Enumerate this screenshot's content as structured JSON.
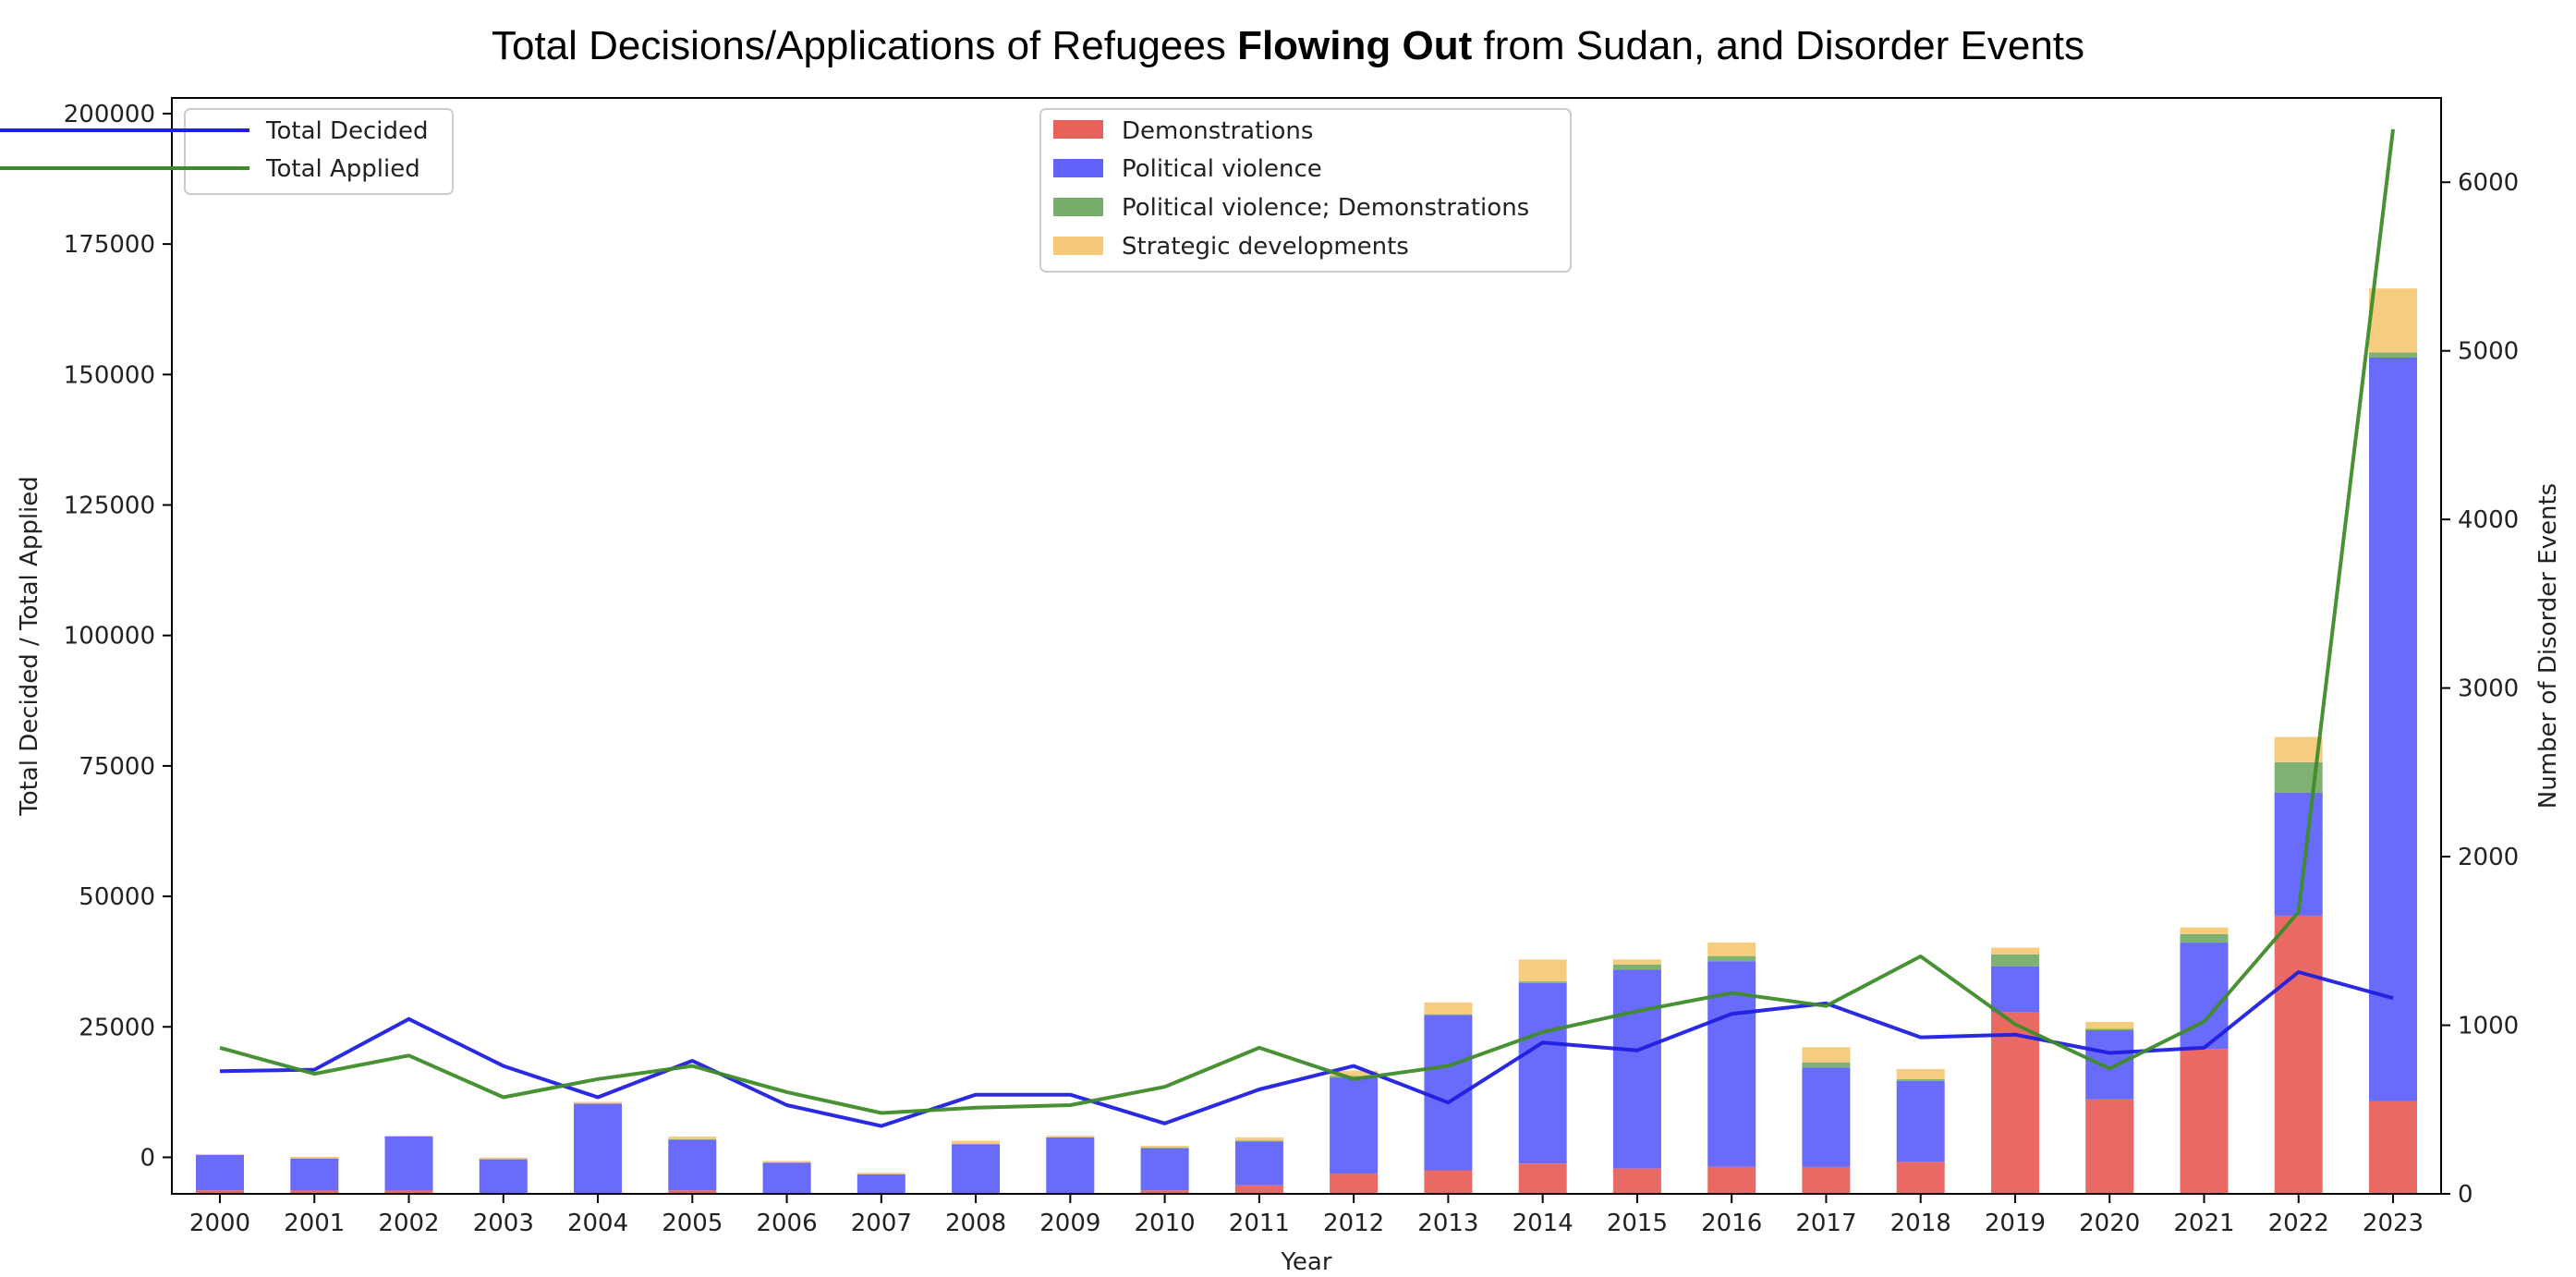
{
  "chart_data": {
    "type": "bar",
    "title_parts": [
      "Total Decisions/Applications of Refugees ",
      "Flowing Out",
      " from Sudan, and Disorder Events"
    ],
    "xlabel": "Year",
    "ylabel_left": "Total Decided / Total Applied",
    "ylabel_right": "Number of Disorder Events",
    "categories": [
      "2000",
      "2001",
      "2002",
      "2003",
      "2004",
      "2005",
      "2006",
      "2007",
      "2008",
      "2009",
      "2010",
      "2011",
      "2012",
      "2013",
      "2014",
      "2015",
      "2016",
      "2017",
      "2018",
      "2019",
      "2020",
      "2021",
      "2022",
      "2023"
    ],
    "ylim_left": [
      -7000,
      203000
    ],
    "ylim_right": [
      0,
      6500
    ],
    "yticks_left": [
      0,
      25000,
      50000,
      75000,
      100000,
      125000,
      150000,
      175000,
      200000
    ],
    "yticks_right": [
      0,
      1000,
      2000,
      3000,
      4000,
      5000,
      6000
    ],
    "bar_series": [
      {
        "name": "Demonstrations",
        "color": "#e8625c",
        "values": [
          20,
          20,
          20,
          5,
          5,
          20,
          5,
          5,
          5,
          5,
          20,
          50,
          120,
          140,
          180,
          150,
          160,
          160,
          190,
          1080,
          560,
          860,
          1650,
          550
        ]
      },
      {
        "name": "Political violence",
        "color": "#6163fb",
        "values": [
          210,
          190,
          320,
          200,
          530,
          300,
          180,
          110,
          290,
          330,
          250,
          260,
          570,
          920,
          1070,
          1180,
          1220,
          590,
          480,
          270,
          410,
          630,
          730,
          4410
        ]
      },
      {
        "name": "Political violence; Demonstrations",
        "color": "#77ae6c",
        "values": [
          0,
          0,
          0,
          0,
          0,
          5,
          0,
          0,
          0,
          0,
          5,
          5,
          10,
          5,
          10,
          30,
          30,
          30,
          10,
          70,
          10,
          50,
          180,
          30
        ]
      },
      {
        "name": "Strategic developments",
        "color": "#f5c977",
        "values": [
          5,
          10,
          5,
          10,
          10,
          15,
          10,
          10,
          20,
          10,
          10,
          20,
          30,
          70,
          130,
          30,
          80,
          90,
          60,
          40,
          40,
          40,
          150,
          380
        ]
      }
    ],
    "line_series": [
      {
        "name": "Total Decided",
        "color": "#1f1fe0",
        "values": [
          16500,
          16800,
          26500,
          17500,
          11500,
          18500,
          10000,
          6000,
          12000,
          12000,
          6500,
          13000,
          17500,
          10500,
          22000,
          20500,
          27500,
          29500,
          23000,
          23500,
          20000,
          21000,
          35500,
          30500
        ]
      },
      {
        "name": "Total Applied",
        "color": "#3f8b2a",
        "values": [
          21000,
          16000,
          19500,
          11500,
          15000,
          17500,
          12500,
          8500,
          9500,
          10000,
          13500,
          21000,
          15000,
          17500,
          24000,
          28000,
          31500,
          29000,
          38500,
          25500,
          17000,
          26000,
          47000,
          197000
        ]
      }
    ],
    "legend_left_position": "upper-left",
    "legend_right_position": "upper-center",
    "grid": false
  }
}
